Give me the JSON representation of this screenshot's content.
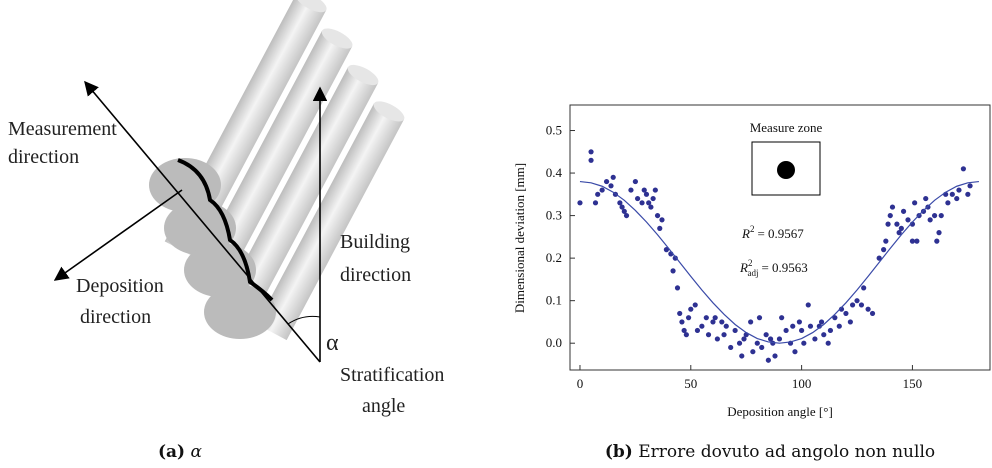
{
  "diagram": {
    "measurement_direction": [
      "Measurement",
      "direction"
    ],
    "deposition_direction": [
      "Deposition",
      "direction"
    ],
    "building_direction": [
      "Building",
      "direction"
    ],
    "stratification_angle": [
      "Stratification",
      "angle"
    ],
    "angle_symbol": "α"
  },
  "chart_data": {
    "type": "scatter",
    "xlabel": "Deposition angle [°]",
    "ylabel": "Dimensional deviation [mm]",
    "xlim": [
      -4.5,
      185
    ],
    "ylim": [
      -0.063,
      0.56
    ],
    "xticks": [
      0,
      50,
      100,
      150
    ],
    "yticks": [
      {
        "value": 0,
        "label": "0.0"
      },
      0.1,
      0.2,
      0.3,
      0.4,
      0.5
    ],
    "annotations": {
      "measure_zone": "Measure zone",
      "r_squared": {
        "symbol": "R",
        "sup": "2",
        "text": "= 0.9567"
      },
      "r_squared_adj": {
        "symbol": "R",
        "sup": "2",
        "sub": "adj",
        "text": "= 0.9563"
      }
    },
    "series": [
      {
        "type": "scatter",
        "color": "#2e3192",
        "x": [
          0,
          5,
          5,
          7,
          8,
          10,
          12,
          14,
          15,
          16,
          18,
          19,
          20,
          21,
          23,
          25,
          26,
          28,
          29,
          30,
          31,
          32,
          33,
          34,
          35,
          36,
          37,
          39,
          41,
          42,
          43,
          44,
          45,
          46,
          47,
          48,
          49,
          50,
          52,
          53,
          55,
          57,
          58,
          60,
          61,
          62,
          64,
          65,
          66,
          68,
          70,
          72,
          73,
          74,
          75,
          77,
          78,
          80,
          81,
          82,
          84,
          85,
          86,
          87,
          88,
          90,
          91,
          93,
          95,
          96,
          97,
          99,
          100,
          101,
          103,
          104,
          106,
          108,
          109,
          110,
          112,
          113,
          115,
          117,
          118,
          120,
          122,
          123,
          125,
          127,
          128,
          130,
          132,
          135,
          137,
          138,
          139,
          140,
          141,
          143,
          144,
          145,
          146,
          148,
          150,
          150,
          151,
          152,
          153,
          155,
          156,
          157,
          158,
          160,
          161,
          162,
          163,
          165,
          166,
          168,
          170,
          171,
          173,
          175,
          176
        ],
        "values": [
          0.33,
          0.45,
          0.43,
          0.33,
          0.35,
          0.36,
          0.38,
          0.37,
          0.39,
          0.35,
          0.33,
          0.32,
          0.31,
          0.3,
          0.36,
          0.38,
          0.34,
          0.33,
          0.36,
          0.35,
          0.33,
          0.32,
          0.34,
          0.36,
          0.3,
          0.27,
          0.29,
          0.22,
          0.21,
          0.17,
          0.2,
          0.13,
          0.07,
          0.05,
          0.03,
          0.02,
          0.06,
          0.08,
          0.09,
          0.03,
          0.04,
          0.06,
          0.02,
          0.05,
          0.06,
          0.01,
          0.05,
          0.02,
          0.04,
          -0.01,
          0.03,
          0.0,
          -0.03,
          0.01,
          0.02,
          0.05,
          -0.02,
          0.0,
          0.06,
          -0.01,
          0.02,
          -0.04,
          0.01,
          0.0,
          -0.03,
          0.01,
          0.06,
          0.03,
          0.0,
          0.04,
          -0.02,
          0.05,
          0.03,
          0.0,
          0.09,
          0.04,
          0.01,
          0.04,
          0.05,
          0.02,
          0.0,
          0.03,
          0.06,
          0.04,
          0.08,
          0.07,
          0.05,
          0.09,
          0.1,
          0.09,
          0.13,
          0.08,
          0.07,
          0.2,
          0.22,
          0.24,
          0.28,
          0.3,
          0.32,
          0.28,
          0.26,
          0.27,
          0.31,
          0.29,
          0.24,
          0.28,
          0.33,
          0.24,
          0.3,
          0.31,
          0.34,
          0.32,
          0.29,
          0.3,
          0.24,
          0.26,
          0.3,
          0.35,
          0.33,
          0.35,
          0.34,
          0.36,
          0.41,
          0.35,
          0.37
        ]
      },
      {
        "type": "line",
        "color": "#3a4aa8",
        "x": [
          0,
          5,
          10,
          15,
          20,
          25,
          30,
          35,
          40,
          45,
          50,
          55,
          60,
          65,
          70,
          75,
          80,
          85,
          90,
          95,
          100,
          105,
          110,
          115,
          120,
          125,
          130,
          135,
          140,
          145,
          150,
          155,
          160,
          165,
          170,
          175,
          180
        ],
        "values": [
          0.38,
          0.377,
          0.369,
          0.355,
          0.336,
          0.312,
          0.285,
          0.255,
          0.223,
          0.19,
          0.157,
          0.125,
          0.095,
          0.068,
          0.044,
          0.025,
          0.011,
          0.003,
          0,
          0.003,
          0.011,
          0.025,
          0.044,
          0.068,
          0.095,
          0.125,
          0.157,
          0.19,
          0.223,
          0.255,
          0.285,
          0.312,
          0.336,
          0.355,
          0.369,
          0.377,
          0.38
        ]
      }
    ]
  },
  "captions": {
    "a": {
      "label": "(a)",
      "text": "α"
    },
    "b": {
      "label": "(b)",
      "text": "Errore dovuto ad angolo non nullo"
    }
  }
}
